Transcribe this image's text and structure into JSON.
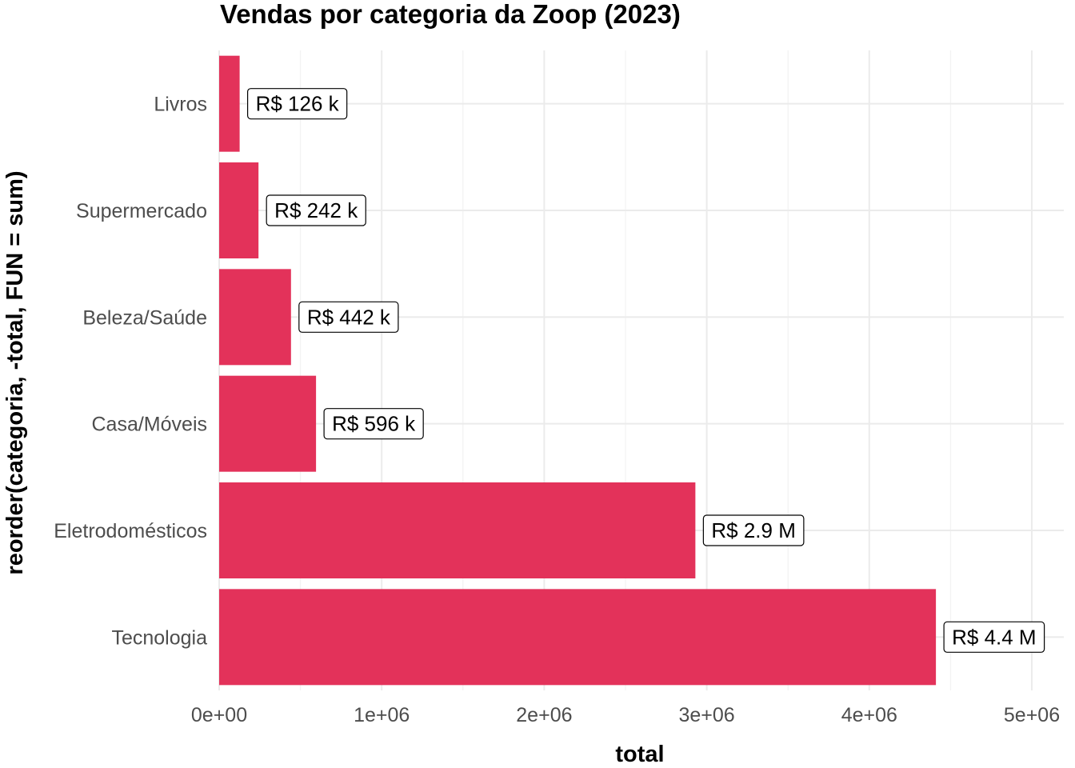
{
  "chart_data": {
    "type": "bar",
    "orientation": "horizontal",
    "title": "Vendas por categoria da Zoop (2023)",
    "xlabel": "total",
    "ylabel": "reorder(categoria, -total, FUN = sum)",
    "xlim": [
      0,
      5000000
    ],
    "x_ticks": [
      0,
      1000000,
      2000000,
      3000000,
      4000000,
      5000000
    ],
    "x_tick_labels": [
      "0e+00",
      "1e+06",
      "2e+06",
      "3e+06",
      "4e+06",
      "5e+06"
    ],
    "categories": [
      "Livros",
      "Supermercado",
      "Beleza/Saúde",
      "Casa/Móveis",
      "Eletrodomésticos",
      "Tecnologia"
    ],
    "values": [
      126000,
      242000,
      442000,
      596000,
      2930000,
      4410000
    ],
    "data_labels": [
      "R$ 126 k",
      "R$ 242 k",
      "R$ 442 k",
      "R$ 596 k",
      "R$ 2.9 M",
      "R$ 4.4 M"
    ],
    "bar_color": "#e3325a",
    "grid": true,
    "legend": "none"
  }
}
